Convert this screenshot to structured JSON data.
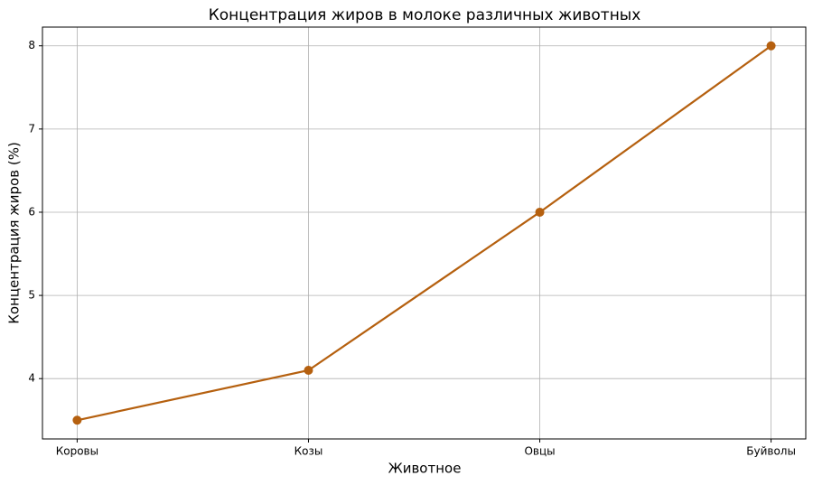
{
  "chart_data": {
    "type": "line",
    "title": "Концентрация жиров в молоке различных животных",
    "xlabel": "Животное",
    "ylabel": "Концентрация жиров (%)",
    "categories": [
      "Коровы",
      "Козы",
      "Овцы",
      "Буйволы"
    ],
    "values": [
      3.5,
      4.1,
      6.0,
      8.0
    ],
    "color": "#b5600f",
    "ylim": [
      3.275,
      8.225
    ],
    "yticks": [
      4,
      5,
      6,
      7,
      8
    ],
    "grid": true
  }
}
